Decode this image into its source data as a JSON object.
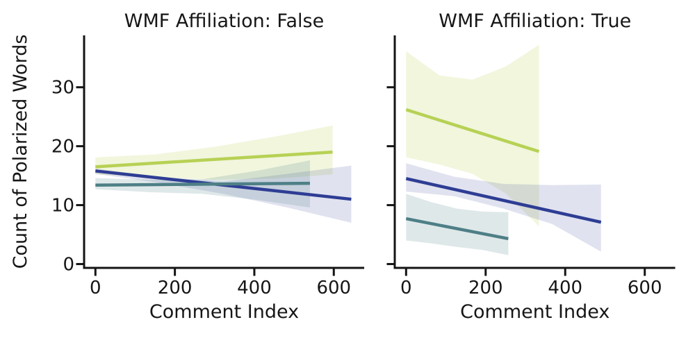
{
  "figure": {
    "background": "#ffffff",
    "text_color": "#161616",
    "spine_color": "#141414"
  },
  "chart_data": {
    "type": "line",
    "chart_kind": "faceted linear-regression plot (seaborn lmplot style) with shaded confidence bands, no legend, no grid",
    "xlabel": "Comment Index",
    "ylabel": "Count of Polarized Words",
    "xticks": [
      0,
      200,
      400,
      600
    ],
    "yticks": [
      0,
      10,
      20,
      30
    ],
    "xlim": [
      -28.5,
      676.5
    ],
    "ylim": [
      -0.65,
      38.8
    ],
    "grid": false,
    "legend": "none",
    "panels": [
      {
        "title": "WMF Affiliation: False",
        "series": [
          {
            "name": "series-yellow-green",
            "color": "#b7d155",
            "band_color": "rgba(183, 209, 85, 0.20)",
            "regression": {
              "x": [
                0,
                597
              ],
              "y": [
                16.5,
                19.0
              ]
            },
            "ci_band": {
              "x": [
                0,
                150,
                300,
                450,
                597
              ],
              "top": [
                18.1,
                18.6,
                19.9,
                21.6,
                23.5
              ],
              "bottom": [
                15.2,
                14.7,
                14.3,
                14.5,
                15.2
              ]
            }
          },
          {
            "name": "series-navy",
            "color": "#2e3d94",
            "band_color": "rgba(46, 61, 148, 0.15)",
            "regression": {
              "x": [
                0,
                644
              ],
              "y": [
                15.8,
                11.0
              ]
            },
            "ci_band": {
              "x": [
                0,
                160,
                322,
                483,
                644
              ],
              "top": [
                16.2,
                14.8,
                14.0,
                15.3,
                16.7
              ],
              "bottom": [
                15.3,
                13.8,
                11.9,
                9.6,
                7.0
              ]
            }
          },
          {
            "name": "series-teal",
            "color": "#4e7f86",
            "band_color": "rgba(78, 127, 134, 0.18)",
            "regression": {
              "x": [
                0,
                540
              ],
              "y": [
                13.4,
                13.7
              ]
            },
            "ci_band": {
              "x": [
                0,
                135,
                270,
                405,
                540
              ],
              "top": [
                14.6,
                14.3,
                14.4,
                15.8,
                17.6
              ],
              "bottom": [
                12.7,
                12.2,
                11.9,
                10.9,
                9.6
              ]
            }
          }
        ]
      },
      {
        "title": "WMF Affiliation: True",
        "series": [
          {
            "name": "series-yellow-green",
            "color": "#b7d155",
            "band_color": "rgba(183, 209, 85, 0.20)",
            "regression": {
              "x": [
                0,
                334
              ],
              "y": [
                26.2,
                19.1
              ]
            },
            "ci_band": {
              "x": [
                0,
                84,
                167,
                250,
                334
              ],
              "top": [
                36.1,
                32.0,
                31.3,
                33.5,
                37.2
              ],
              "bottom": [
                18.1,
                16.9,
                15.3,
                12.0,
                6.4
              ]
            }
          },
          {
            "name": "series-navy",
            "color": "#2e3d94",
            "band_color": "rgba(46, 61, 148, 0.15)",
            "regression": {
              "x": [
                0,
                490
              ],
              "y": [
                14.5,
                7.1
              ]
            },
            "ci_band": {
              "x": [
                0,
                122,
                245,
                367,
                490
              ],
              "top": [
                17.1,
                14.8,
                13.6,
                13.4,
                13.5
              ],
              "bottom": [
                12.3,
                11.5,
                9.4,
                6.8,
                2.1
              ]
            }
          },
          {
            "name": "series-teal",
            "color": "#4e7f86",
            "band_color": "rgba(78, 127, 134, 0.18)",
            "regression": {
              "x": [
                0,
                257
              ],
              "y": [
                7.7,
                4.3
              ]
            },
            "ci_band": {
              "x": [
                0,
                64,
                128,
                192,
                257
              ],
              "top": [
                11.9,
                10.5,
                9.4,
                8.9,
                8.8
              ],
              "bottom": [
                4.0,
                3.5,
                2.9,
                2.4,
                1.5
              ]
            }
          }
        ]
      }
    ]
  }
}
